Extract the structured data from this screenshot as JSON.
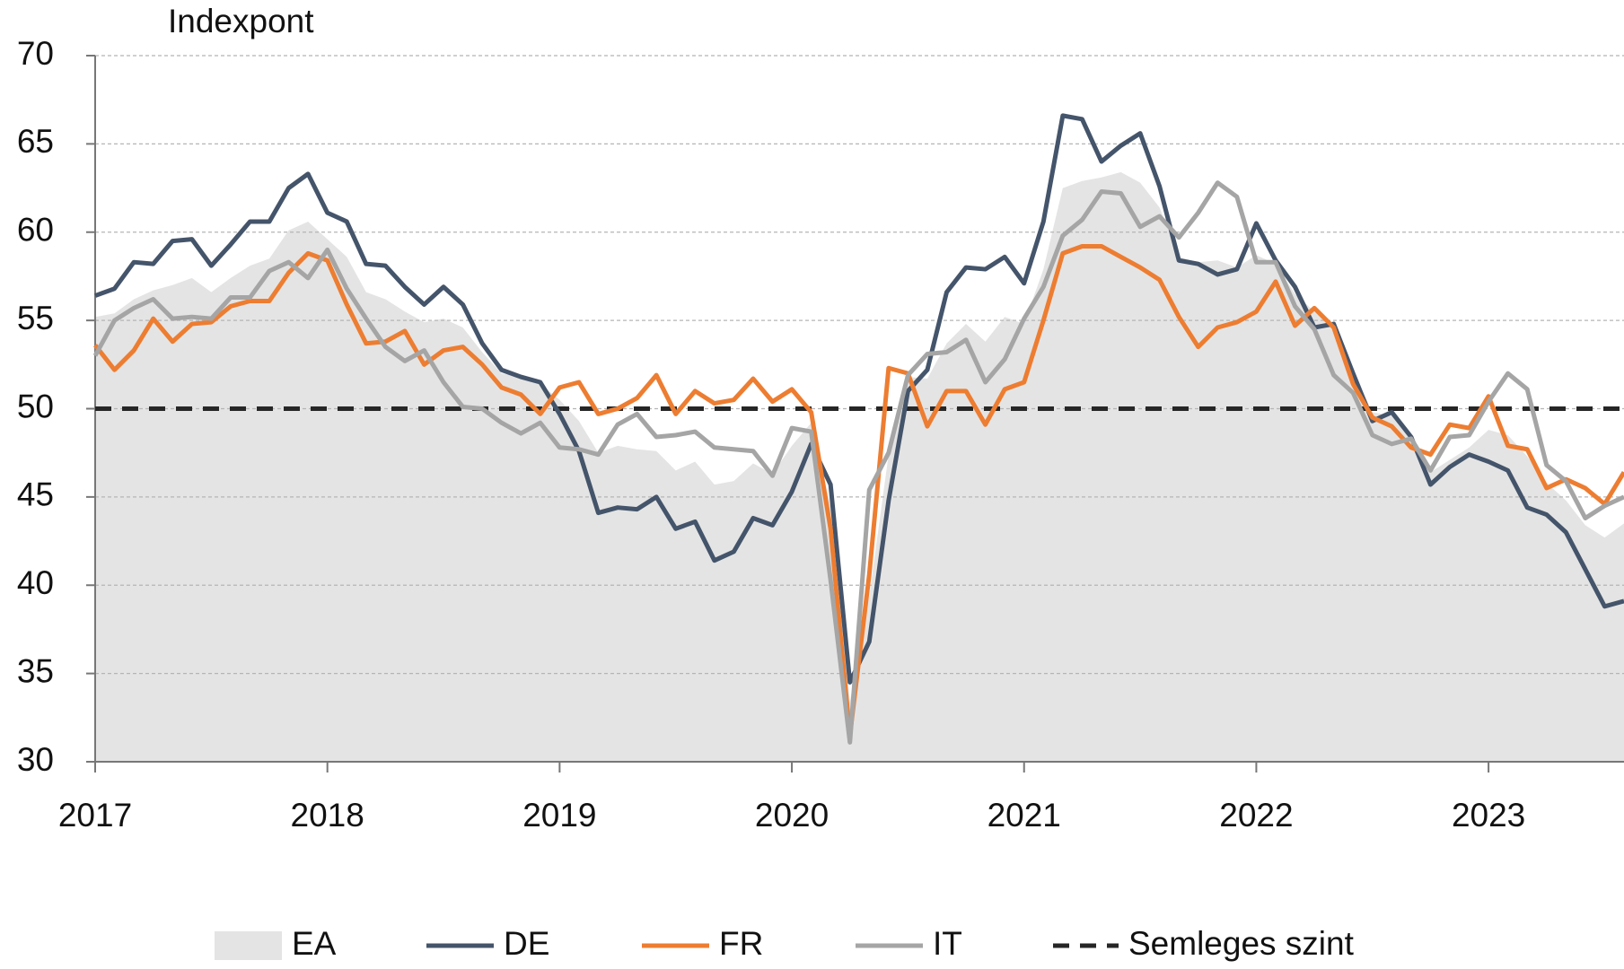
{
  "chart_data": {
    "type": "line",
    "y_axis_label": "Indexpont",
    "categories": [
      "2017",
      null,
      null,
      null,
      null,
      null,
      null,
      null,
      null,
      null,
      null,
      null,
      "2018",
      null,
      null,
      null,
      null,
      null,
      null,
      null,
      null,
      null,
      null,
      null,
      "2019",
      null,
      null,
      null,
      null,
      null,
      null,
      null,
      null,
      null,
      null,
      null,
      "2020",
      null,
      null,
      null,
      null,
      null,
      null,
      null,
      null,
      null,
      null,
      null,
      "2021",
      null,
      null,
      null,
      null,
      null,
      null,
      null,
      null,
      null,
      null,
      null,
      "2022",
      null,
      null,
      null,
      null,
      null,
      null,
      null,
      null,
      null,
      null,
      null,
      "2023",
      null,
      null,
      null,
      null,
      null,
      null,
      null
    ],
    "ylim": [
      30,
      70
    ],
    "yticks": [
      30,
      35,
      40,
      45,
      50,
      55,
      60,
      65,
      70
    ],
    "grid": true,
    "legend": "bottom",
    "series": [
      {
        "name": "EA",
        "style": "area",
        "color": "#e4e4e4",
        "values": [
          55.2,
          55.4,
          56.2,
          56.7,
          57.0,
          57.4,
          56.6,
          57.4,
          58.1,
          58.5,
          60.1,
          60.6,
          59.6,
          58.6,
          56.6,
          56.2,
          55.5,
          54.9,
          55.1,
          54.6,
          53.2,
          52.0,
          51.8,
          51.4,
          50.5,
          49.3,
          47.5,
          47.9,
          47.7,
          47.6,
          46.5,
          47.0,
          45.7,
          45.9,
          46.9,
          46.3,
          47.9,
          49.2,
          44.5,
          33.4,
          39.4,
          47.4,
          51.8,
          51.7,
          53.7,
          54.8,
          53.8,
          55.2,
          54.8,
          57.9,
          62.5,
          62.9,
          63.1,
          63.4,
          62.8,
          61.4,
          58.6,
          58.3,
          58.4,
          58.0,
          58.7,
          58.2,
          56.5,
          55.5,
          54.6,
          52.1,
          49.8,
          49.6,
          48.4,
          46.4,
          47.1,
          47.8,
          48.8,
          48.5,
          47.3,
          45.8,
          44.8,
          43.4,
          42.7,
          43.5
        ]
      },
      {
        "name": "DE",
        "style": "line",
        "color": "#44546a",
        "values": [
          56.4,
          56.8,
          58.3,
          58.2,
          59.5,
          59.6,
          58.1,
          59.3,
          60.6,
          60.6,
          62.5,
          63.3,
          61.1,
          60.6,
          58.2,
          58.1,
          56.9,
          55.9,
          56.9,
          55.9,
          53.7,
          52.2,
          51.8,
          51.5,
          49.7,
          47.6,
          44.1,
          44.4,
          44.3,
          45.0,
          43.2,
          43.6,
          41.4,
          41.9,
          43.8,
          43.4,
          45.3,
          48.0,
          45.7,
          34.5,
          36.8,
          44.8,
          51.0,
          52.2,
          56.6,
          58.0,
          57.9,
          58.6,
          57.1,
          60.6,
          66.6,
          66.4,
          64.0,
          64.9,
          65.6,
          62.6,
          58.4,
          58.2,
          57.6,
          57.9,
          60.5,
          58.4,
          56.9,
          54.6,
          54.8,
          52.0,
          49.3,
          49.8,
          48.4,
          45.7,
          46.7,
          47.4,
          47.0,
          46.5,
          44.4,
          44.0,
          43.0,
          40.9,
          38.8,
          39.1
        ]
      },
      {
        "name": "FR",
        "style": "line",
        "color": "#ed7d31",
        "values": [
          53.6,
          52.2,
          53.3,
          55.1,
          53.8,
          54.8,
          54.9,
          55.8,
          56.1,
          56.1,
          57.7,
          58.8,
          58.4,
          55.9,
          53.7,
          53.8,
          54.4,
          52.5,
          53.3,
          53.5,
          52.5,
          51.2,
          50.8,
          49.7,
          51.2,
          51.5,
          49.7,
          50.0,
          50.6,
          51.9,
          49.7,
          51.0,
          50.3,
          50.5,
          51.7,
          50.4,
          51.1,
          49.8,
          43.2,
          31.5,
          40.6,
          52.3,
          52.0,
          49.0,
          51.0,
          51.0,
          49.1,
          51.1,
          51.5,
          55.0,
          58.8,
          59.2,
          59.2,
          58.6,
          58.0,
          57.3,
          55.2,
          53.5,
          54.6,
          54.9,
          55.5,
          57.2,
          54.7,
          55.7,
          54.6,
          51.4,
          49.5,
          49.0,
          47.8,
          47.4,
          49.1,
          48.9,
          50.7,
          47.9,
          47.7,
          45.5,
          46.0,
          45.5,
          44.6,
          46.4
        ]
      },
      {
        "name": "IT",
        "style": "line",
        "color": "#a5a5a5",
        "values": [
          53.0,
          55.0,
          55.7,
          56.2,
          55.1,
          55.2,
          55.1,
          56.3,
          56.3,
          57.8,
          58.3,
          57.4,
          59.0,
          56.8,
          55.1,
          53.5,
          52.7,
          53.3,
          51.5,
          50.1,
          50.0,
          49.2,
          48.6,
          49.2,
          47.8,
          47.7,
          47.4,
          49.1,
          49.7,
          48.4,
          48.5,
          48.7,
          47.8,
          47.7,
          47.6,
          46.2,
          48.9,
          48.7,
          40.3,
          31.1,
          45.4,
          47.5,
          51.9,
          53.1,
          53.2,
          53.9,
          51.5,
          52.8,
          55.1,
          56.9,
          59.8,
          60.7,
          62.3,
          62.2,
          60.3,
          60.9,
          59.7,
          61.1,
          62.8,
          62.0,
          58.3,
          58.3,
          55.8,
          54.5,
          51.9,
          50.9,
          48.5,
          48.0,
          48.3,
          46.5,
          48.4,
          48.5,
          50.4,
          52.0,
          51.1,
          46.8,
          45.9,
          43.8,
          44.5,
          45.0
        ]
      }
    ],
    "reference_line": {
      "name": "Semleges szint",
      "value": 50,
      "color": "#262626"
    }
  }
}
